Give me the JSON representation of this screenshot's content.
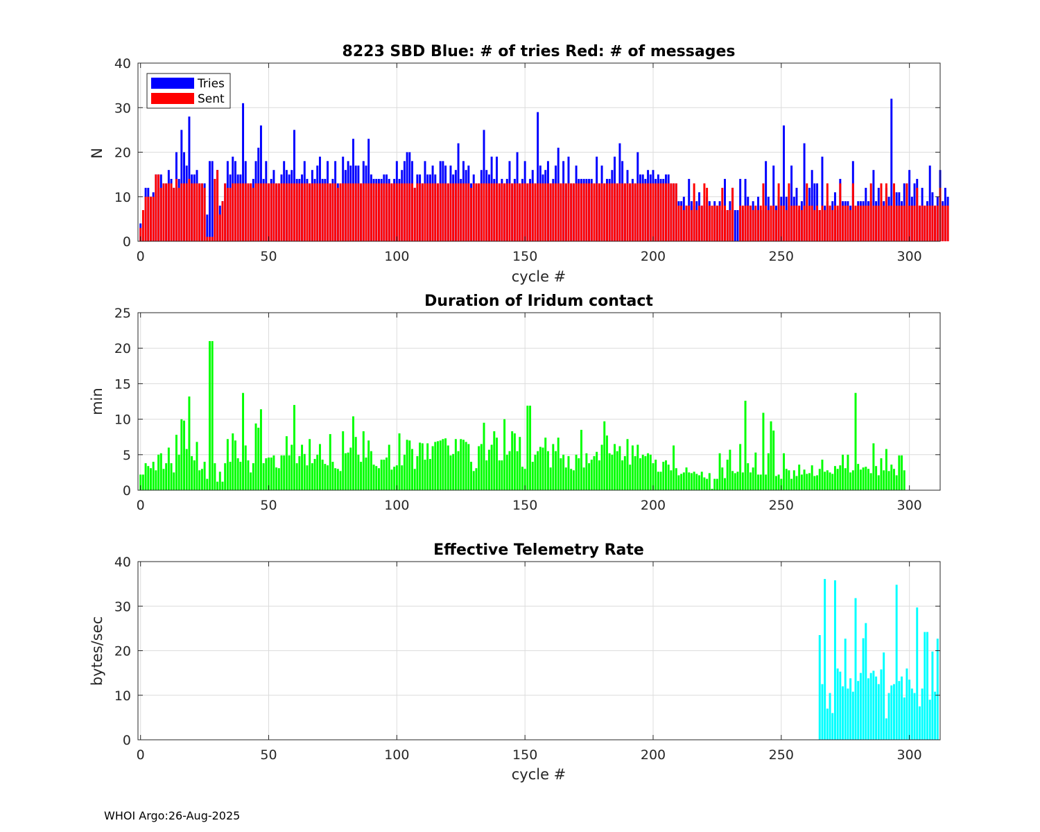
{
  "footer": "WHOI Argo:26-Aug-2025",
  "colors": {
    "tries": "#0000ff",
    "sent": "#ff0000",
    "duration": "#00ff00",
    "rate": "#00ffff"
  },
  "chart_data": [
    {
      "type": "bar",
      "title": "8223 SBD  Blue: # of tries   Red: # of messages",
      "xlabel": "cycle #",
      "ylabel": "N",
      "xlim": [
        -1,
        312
      ],
      "ylim": [
        0,
        40
      ],
      "xticks": [
        0,
        50,
        100,
        150,
        200,
        250,
        300
      ],
      "yticks": [
        0,
        10,
        20,
        30,
        40
      ],
      "legend": {
        "position": "top-left",
        "entries": [
          "Tries",
          "Sent"
        ]
      },
      "series": [
        {
          "name": "Tries",
          "color": "#0000ff",
          "values": [
            4,
            0,
            12,
            12,
            10,
            11,
            15,
            15,
            15,
            13,
            13,
            16,
            14,
            12,
            20,
            14,
            25,
            20,
            17,
            28,
            15,
            15,
            16,
            13,
            13,
            13,
            6,
            18,
            18,
            14,
            16,
            8,
            9,
            13,
            18,
            15,
            19,
            18,
            15,
            15,
            31,
            18,
            13,
            13,
            14,
            18,
            21,
            26,
            14,
            18,
            13,
            14,
            16,
            13,
            13,
            15,
            18,
            16,
            15,
            16,
            25,
            14,
            14,
            15,
            18,
            14,
            13,
            16,
            14,
            17,
            19,
            14,
            14,
            18,
            13,
            14,
            18,
            13,
            13,
            19,
            16,
            18,
            17,
            23,
            17,
            17,
            13,
            18,
            17,
            23,
            15,
            14,
            14,
            14,
            14,
            15,
            15,
            14,
            13,
            14,
            18,
            14,
            16,
            18,
            20,
            20,
            18,
            12,
            15,
            15,
            13,
            18,
            15,
            15,
            17,
            15,
            13,
            18,
            18,
            17,
            13,
            17,
            15,
            16,
            22,
            14,
            18,
            16,
            17,
            13,
            15,
            13,
            13,
            16,
            25,
            16,
            15,
            19,
            14,
            19,
            13,
            14,
            13,
            14,
            18,
            13,
            14,
            20,
            13,
            14,
            18,
            13,
            14,
            16,
            13,
            29,
            17,
            15,
            16,
            18,
            13,
            14,
            17,
            21,
            13,
            18,
            13,
            19,
            13,
            13,
            17,
            14,
            14,
            14,
            14,
            14,
            14,
            13,
            19,
            13,
            17,
            13,
            14,
            14,
            16,
            19,
            13,
            22,
            18,
            13,
            16,
            13,
            14,
            13,
            20,
            15,
            15,
            14,
            16,
            15,
            16,
            14,
            15,
            14,
            14,
            15,
            15,
            13,
            13,
            13,
            9,
            9,
            10,
            8,
            14,
            9,
            8,
            9,
            11,
            8,
            8,
            10,
            9,
            7,
            9,
            8,
            9,
            7,
            14,
            7,
            9,
            12,
            7,
            7,
            14,
            7,
            14,
            10,
            8,
            9,
            7,
            10,
            7,
            7,
            18,
            10,
            7,
            17,
            8,
            10,
            10,
            26,
            10,
            8,
            17,
            10,
            12,
            7,
            9,
            22,
            8,
            12,
            16,
            13,
            13,
            7,
            19,
            8,
            9,
            8,
            9,
            11,
            7,
            14,
            9,
            9,
            9,
            8,
            18,
            7,
            9,
            9,
            9,
            12,
            9,
            9,
            16,
            9,
            12,
            13,
            9,
            12,
            10,
            32,
            11,
            11,
            11,
            9,
            13,
            8,
            16,
            10,
            13,
            14,
            8,
            12,
            8,
            9,
            17,
            11,
            8,
            10,
            16,
            9,
            12,
            10
          ]
        },
        {
          "name": "Sent",
          "color": "#ff0000",
          "values": [
            3,
            7,
            10,
            10,
            10,
            10,
            15,
            15,
            12,
            13,
            13,
            13,
            13,
            12,
            14,
            12,
            13,
            13,
            13,
            14,
            13,
            13,
            13,
            13,
            13,
            12,
            1,
            1,
            1,
            14,
            16,
            6,
            9,
            13,
            12,
            12,
            13,
            13,
            13,
            13,
            13,
            13,
            13,
            13,
            12,
            13,
            13,
            13,
            13,
            13,
            13,
            13,
            13,
            13,
            13,
            13,
            13,
            13,
            13,
            13,
            13,
            13,
            13,
            13,
            13,
            13,
            13,
            13,
            13,
            13,
            13,
            13,
            13,
            13,
            13,
            13,
            13,
            12,
            13,
            13,
            13,
            13,
            13,
            13,
            13,
            13,
            13,
            13,
            13,
            13,
            13,
            13,
            13,
            13,
            13,
            13,
            13,
            13,
            13,
            13,
            13,
            13,
            13,
            13,
            13,
            13,
            13,
            12,
            13,
            13,
            13,
            13,
            13,
            13,
            13,
            13,
            13,
            13,
            13,
            13,
            13,
            13,
            13,
            13,
            13,
            13,
            13,
            13,
            13,
            12,
            13,
            13,
            13,
            13,
            13,
            13,
            13,
            13,
            13,
            13,
            13,
            13,
            13,
            13,
            13,
            13,
            13,
            13,
            13,
            13,
            13,
            13,
            13,
            13,
            13,
            13,
            13,
            13,
            13,
            13,
            13,
            13,
            13,
            13,
            13,
            13,
            13,
            13,
            13,
            13,
            13,
            13,
            13,
            13,
            13,
            13,
            13,
            13,
            13,
            13,
            13,
            13,
            13,
            13,
            13,
            13,
            13,
            13,
            13,
            13,
            13,
            13,
            13,
            13,
            13,
            13,
            13,
            13,
            13,
            13,
            13,
            13,
            13,
            13,
            13,
            13,
            13,
            13,
            13,
            13,
            8,
            8,
            7,
            8,
            8,
            7,
            13,
            7,
            8,
            8,
            13,
            12,
            8,
            8,
            8,
            8,
            8,
            12,
            8,
            7,
            7,
            12,
            0,
            0,
            8,
            8,
            8,
            8,
            8,
            7,
            8,
            7,
            8,
            13,
            8,
            7,
            8,
            8,
            7,
            13,
            8,
            8,
            7,
            13,
            8,
            8,
            8,
            8,
            7,
            8,
            13,
            8,
            8,
            7,
            8,
            7,
            8,
            7,
            13,
            8,
            7,
            8,
            8,
            13,
            8,
            8,
            8,
            7,
            13,
            8,
            8,
            8,
            8,
            8,
            8,
            13,
            8,
            8,
            8,
            13,
            8,
            13,
            8,
            8,
            13,
            8,
            8,
            8,
            8,
            13,
            8,
            8,
            8,
            12,
            8,
            8,
            8,
            8,
            8,
            8,
            8,
            8,
            12,
            8,
            8,
            8
          ]
        }
      ]
    },
    {
      "type": "bar",
      "title": "Duration of Iridum contact",
      "xlabel": "",
      "ylabel": "min",
      "xlim": [
        -1,
        312
      ],
      "ylim": [
        0,
        25
      ],
      "xticks": [
        0,
        50,
        100,
        150,
        200,
        250,
        300
      ],
      "yticks": [
        0,
        5,
        10,
        15,
        20,
        25
      ],
      "series": [
        {
          "name": "Duration",
          "color": "#00ff00",
          "values": [
            2.2,
            2.2,
            3.8,
            3.4,
            3.1,
            4.0,
            2.8,
            5.0,
            5.2,
            3.0,
            3.8,
            6.0,
            3.8,
            2.5,
            7.8,
            5.0,
            10.0,
            9.8,
            5.8,
            13.2,
            4.8,
            4.2,
            6.8,
            2.8,
            3.0,
            4.0,
            1.6,
            21.0,
            21.0,
            3.8,
            1.2,
            2.6,
            1.2,
            3.8,
            7.2,
            4.0,
            8.0,
            7.0,
            4.5,
            4.0,
            13.7,
            6.3,
            4.2,
            2.5,
            3.8,
            9.4,
            8.8,
            11.4,
            3.8,
            4.5,
            4.6,
            4.6,
            4.9,
            3.2,
            3.1,
            4.9,
            4.9,
            7.6,
            4.9,
            6.4,
            12.0,
            3.8,
            4.8,
            6.4,
            5.1,
            3.5,
            7.2,
            3.8,
            4.4,
            5.0,
            6.5,
            4.3,
            3.7,
            3.5,
            7.9,
            4.0,
            3.1,
            3.0,
            2.7,
            8.3,
            5.2,
            5.3,
            6.0,
            10.4,
            7.5,
            5.0,
            4.0,
            8.3,
            4.6,
            7.0,
            5.5,
            3.6,
            3.4,
            3.1,
            4.3,
            4.3,
            4.6,
            6.4,
            2.9,
            3.3,
            3.5,
            8.0,
            3.5,
            5.0,
            7.1,
            7.0,
            5.8,
            3.0,
            4.8,
            6.7,
            6.6,
            4.3,
            6.6,
            4.4,
            6.2,
            6.8,
            6.9,
            7.0,
            7.2,
            7.3,
            6.3,
            4.9,
            5.1,
            7.2,
            5.5,
            7.2,
            7.1,
            6.8,
            6.5,
            4.0,
            2.7,
            3.1,
            6.2,
            6.5,
            9.5,
            4.2,
            5.7,
            6.4,
            8.3,
            7.4,
            4.2,
            4.2,
            10.0,
            5.0,
            5.5,
            8.3,
            8.0,
            5.5,
            7.5,
            3.3,
            3.0,
            11.9,
            11.9,
            4.0,
            5.0,
            5.5,
            6.1,
            6.0,
            7.4,
            5.5,
            3.2,
            6.5,
            5.5,
            7.4,
            4.5,
            5.0,
            3.2,
            4.8,
            3.0,
            2.8,
            5.0,
            4.5,
            8.5,
            3.2,
            5.2,
            3.8,
            4.3,
            4.8,
            5.4,
            4.2,
            6.4,
            9.7,
            7.7,
            5.2,
            5.0,
            6.5,
            5.5,
            6.2,
            4.2,
            4.8,
            7.2,
            3.6,
            6.3,
            4.8,
            6.4,
            4.5,
            5.0,
            4.8,
            5.2,
            5.0,
            3.8,
            4.3,
            2.6,
            2.6,
            4.0,
            4.2,
            3.6,
            2.8,
            6.3,
            3.1,
            2.1,
            2.3,
            2.5,
            3.2,
            2.5,
            2.4,
            2.6,
            2.3,
            2.1,
            2.6,
            1.8,
            1.6,
            2.4,
            0.2,
            1.6,
            1.6,
            5.2,
            3.2,
            1.7,
            4.3,
            5.7,
            2.7,
            2.4,
            2.6,
            6.5,
            2.5,
            12.6,
            3.8,
            2.5,
            3.2,
            5.3,
            2.2,
            2.2,
            10.9,
            2.2,
            5.2,
            9.7,
            8.4,
            2.0,
            2.2,
            1.6,
            5.2,
            3.0,
            2.8,
            1.6,
            2.8,
            2.0,
            3.6,
            2.2,
            2.9,
            2.3,
            2.4,
            3.5,
            2.0,
            2.1,
            3.0,
            4.3,
            2.6,
            2.8,
            2.5,
            2.3,
            3.4,
            3.0,
            3.5,
            5.0,
            3.1,
            5.0,
            2.5,
            2.8,
            13.7,
            3.7,
            2.9,
            3.2,
            3.3,
            3.0,
            2.4,
            6.6,
            3.4,
            2.1,
            4.5,
            2.8,
            5.8,
            2.7,
            3.6,
            3.0,
            2.1,
            4.9,
            4.9,
            2.8
          ]
        }
      ]
    },
    {
      "type": "bar",
      "title": "Effective Telemetry Rate",
      "xlabel": "cycle #",
      "ylabel": "bytes/sec",
      "xlim": [
        -1,
        312
      ],
      "ylim": [
        0,
        40
      ],
      "xticks": [
        0,
        50,
        100,
        150,
        200,
        250,
        300
      ],
      "yticks": [
        0,
        10,
        20,
        30,
        40
      ],
      "start_cycle": 265,
      "series": [
        {
          "name": "Rate",
          "color": "#00ffff",
          "values": [
            23.5,
            12.5,
            36.1,
            7.0,
            10.5,
            6.0,
            35.8,
            16.0,
            15.3,
            12.0,
            22.7,
            11.5,
            13.8,
            10.8,
            31.8,
            13.2,
            15.0,
            22.8,
            26.2,
            13.8,
            15.0,
            15.5,
            14.2,
            12.5,
            15.8,
            19.6,
            4.8,
            10.5,
            12.2,
            12.5,
            34.8,
            13.2,
            14.2,
            9.5,
            16.0,
            13.5,
            11.5,
            10.5,
            29.7,
            7.5,
            11.5,
            24.2,
            24.2,
            9.0,
            19.8,
            10.8,
            22.7
          ]
        }
      ]
    }
  ]
}
